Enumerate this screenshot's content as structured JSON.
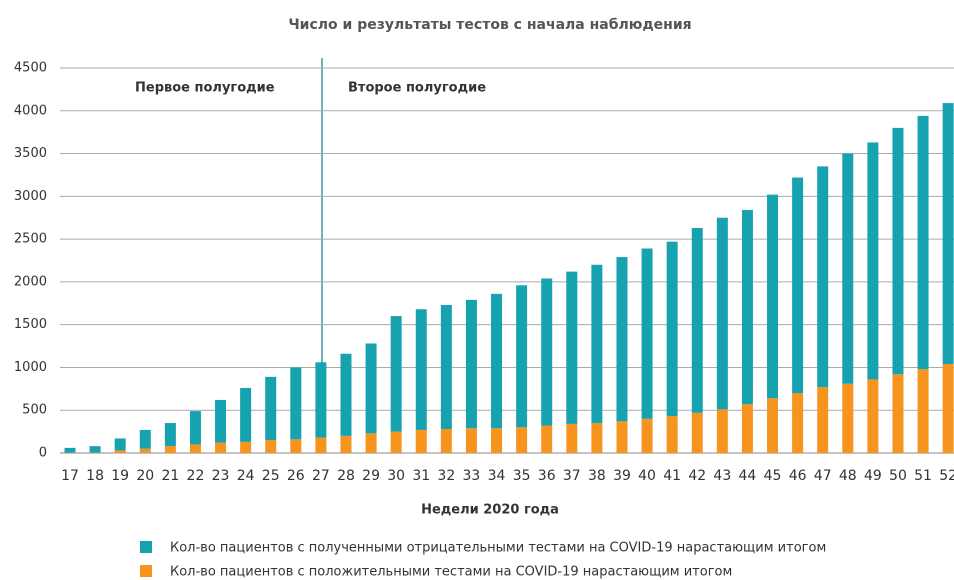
{
  "chart_data": {
    "type": "stacked_bar",
    "title": "Число и результаты тестов с начала наблюдения",
    "xlabel": "Недели 2020 года",
    "annotations": [
      "Первое полугодие",
      "Второе полугодие"
    ],
    "categories": [
      "17",
      "18",
      "19",
      "20",
      "21",
      "22",
      "23",
      "24",
      "25",
      "26",
      "27",
      "28",
      "29",
      "30",
      "31",
      "32",
      "33",
      "34",
      "35",
      "36",
      "37",
      "38",
      "39",
      "40",
      "41",
      "42",
      "43",
      "44",
      "45",
      "46",
      "47",
      "48",
      "49",
      "50",
      "51",
      "52"
    ],
    "series": [
      {
        "name": "Кол-во пациентов с полученными отрицательными тестами на COVID-19 нарастающим итогом",
        "color": "#17a2b0",
        "values": [
          55,
          75,
          140,
          220,
          270,
          390,
          500,
          630,
          740,
          840,
          880,
          960,
          1050,
          1350,
          1410,
          1450,
          1500,
          1570,
          1660,
          1720,
          1780,
          1850,
          1920,
          1990,
          2040,
          2160,
          2240,
          2270,
          2380,
          2520,
          2580,
          2690,
          2770,
          2880,
          2960,
          3050
        ]
      },
      {
        "name": "Кол-во пациентов с положительными тестами на COVID-19 нарастающим итогом",
        "color": "#f7941d",
        "values": [
          5,
          5,
          30,
          50,
          80,
          100,
          120,
          130,
          150,
          160,
          180,
          200,
          230,
          250,
          270,
          280,
          290,
          290,
          300,
          320,
          340,
          350,
          370,
          400,
          430,
          470,
          510,
          570,
          640,
          700,
          770,
          810,
          860,
          920,
          980,
          1040
        ]
      }
    ],
    "ylim": [
      0,
      4500
    ],
    "yticks": [
      0,
      500,
      1000,
      1500,
      2000,
      2500,
      3000,
      3500,
      4000,
      4500
    ],
    "grid": true
  }
}
